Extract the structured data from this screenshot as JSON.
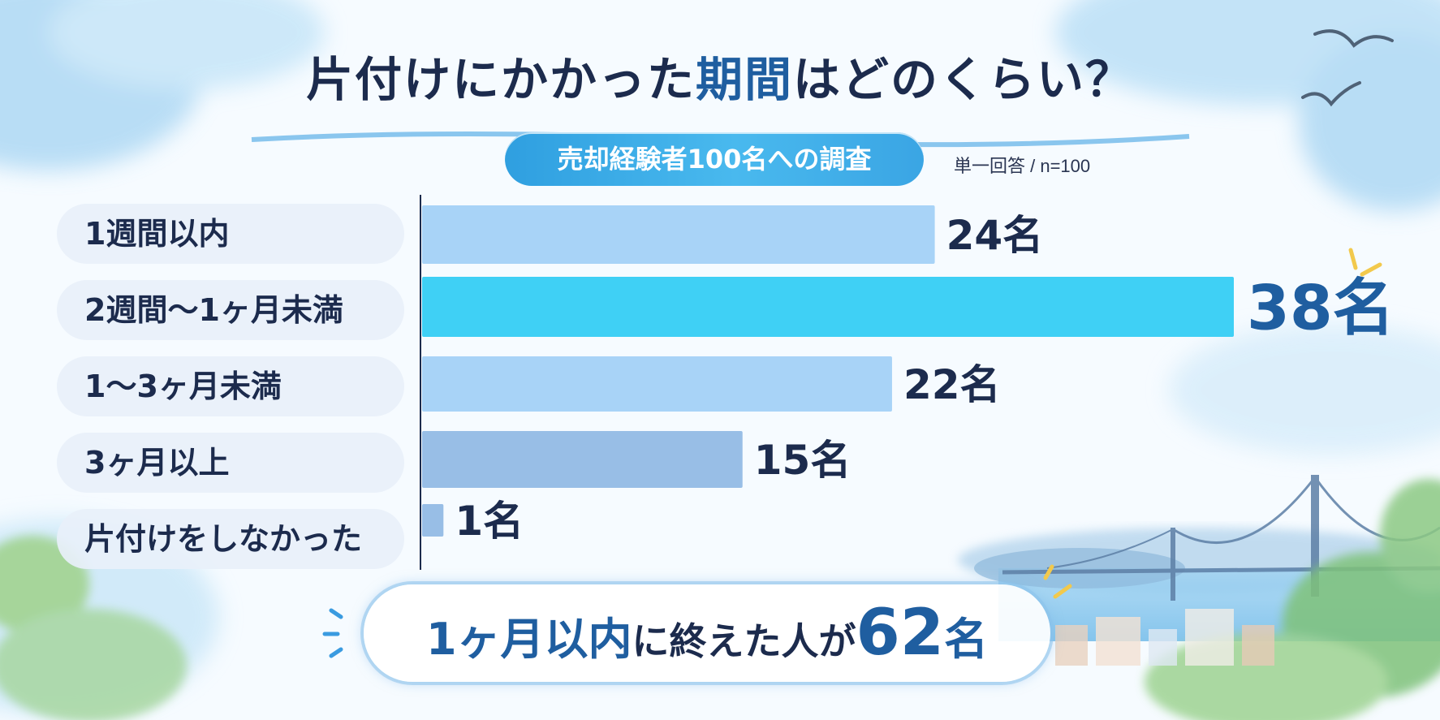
{
  "colors": {
    "title": "#1c2b4d",
    "accent": "#1f5ea0",
    "bar_default": "#a8d3f7",
    "bar_highlight": "#3fd0f5",
    "bar_muted": "#98bee6",
    "sky": "#bfe2f7"
  },
  "title": {
    "part1": "片付けにかかった",
    "highlight": "期間",
    "part2": "はどのくらい？"
  },
  "subtitle": "売却経験者100名への調査",
  "note": "単一回答 / n=100",
  "chart_data": {
    "type": "bar",
    "orientation": "horizontal",
    "categories": [
      "1週間以内",
      "2週間～1ヶ月未満",
      "1～3ヶ月未満",
      "3ヶ月以上",
      "片付けをしなかった"
    ],
    "values": [
      24,
      38,
      22,
      15,
      1
    ],
    "unit": "名",
    "value_labels": [
      "24名",
      "38名",
      "22名",
      "15名",
      "1名"
    ],
    "highlight_index": 1,
    "xlim": [
      0,
      38
    ],
    "grid": false,
    "legend": "none"
  },
  "summary": {
    "part1": "1ヶ月以内",
    "part2": "に終えた人が",
    "number": "62",
    "unit": "名"
  },
  "icons": [
    "seagull-icon",
    "bridge-illustration",
    "sparkle-icon",
    "watercolor-cloud",
    "tree-illustration"
  ]
}
